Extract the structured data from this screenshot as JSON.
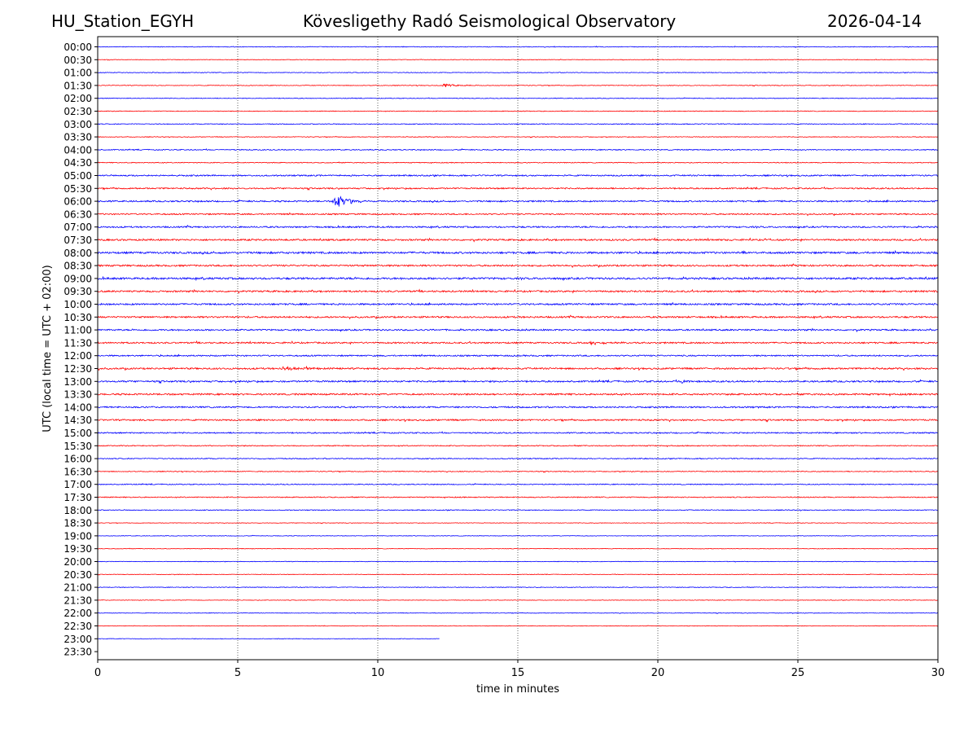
{
  "header": {
    "station": "HU_Station_EGYH",
    "title": "Kövesligethy Radó Seismological Observatory",
    "date": "2026-04-14"
  },
  "chart_data": {
    "type": "line",
    "subtype": "helicorder",
    "xlabel": "time in minutes",
    "ylabel": "UTC (local time = UTC + 02:00)",
    "xlim": [
      0,
      30
    ],
    "x_ticks": [
      "0",
      "5",
      "10",
      "15",
      "20",
      "25",
      "30"
    ],
    "x_tick_values": [
      0,
      5,
      10,
      15,
      20,
      25,
      30
    ],
    "vertical_grid_at": [
      5,
      10,
      15,
      20,
      25
    ],
    "row_labels": [
      "00:00",
      "00:30",
      "01:00",
      "01:30",
      "02:00",
      "02:30",
      "03:00",
      "03:30",
      "04:00",
      "04:30",
      "05:00",
      "05:30",
      "06:00",
      "06:30",
      "07:00",
      "07:30",
      "08:00",
      "08:30",
      "09:00",
      "09:30",
      "10:00",
      "10:30",
      "11:00",
      "11:30",
      "12:00",
      "12:30",
      "13:00",
      "13:30",
      "14:00",
      "14:30",
      "15:00",
      "15:30",
      "16:00",
      "16:30",
      "17:00",
      "17:30",
      "18:00",
      "18:30",
      "19:00",
      "19:30",
      "20:00",
      "20:30",
      "21:00",
      "21:30",
      "22:00",
      "22:30",
      "23:00",
      "23:30"
    ],
    "row_colors": [
      "#0000ff",
      "#ff0000"
    ],
    "last_row_index": 46,
    "last_row_end_minute": 12.2,
    "noise_level": [
      0.25,
      0.2,
      0.25,
      0.25,
      0.25,
      0.25,
      0.3,
      0.25,
      0.35,
      0.3,
      0.5,
      0.5,
      0.55,
      0.5,
      0.55,
      0.6,
      0.7,
      0.6,
      0.7,
      0.6,
      0.6,
      0.6,
      0.55,
      0.55,
      0.5,
      0.6,
      0.6,
      0.6,
      0.55,
      0.55,
      0.45,
      0.35,
      0.35,
      0.3,
      0.35,
      0.35,
      0.3,
      0.2,
      0.2,
      0.2,
      0.2,
      0.2,
      0.25,
      0.2,
      0.2,
      0.2,
      0.2
    ],
    "events": [
      {
        "row": 3,
        "minute": 12.3,
        "duration": 1.8,
        "amplitude": 3
      },
      {
        "row": 12,
        "minute": 8.4,
        "duration": 1.6,
        "amplitude": 12
      },
      {
        "row": 23,
        "minute": 17.5,
        "duration": 2.0,
        "amplitude": 2.5
      },
      {
        "row": 25,
        "minute": 6.5,
        "duration": 2.5,
        "amplitude": 3
      },
      {
        "row": 16,
        "minute": 23.0,
        "duration": 0.4,
        "amplitude": 3
      },
      {
        "row": 26,
        "minute": 20.8,
        "duration": 0.8,
        "amplitude": 2.5
      },
      {
        "row": 15,
        "minute": 23.8,
        "duration": 0.5,
        "amplitude": 2.5
      }
    ]
  }
}
